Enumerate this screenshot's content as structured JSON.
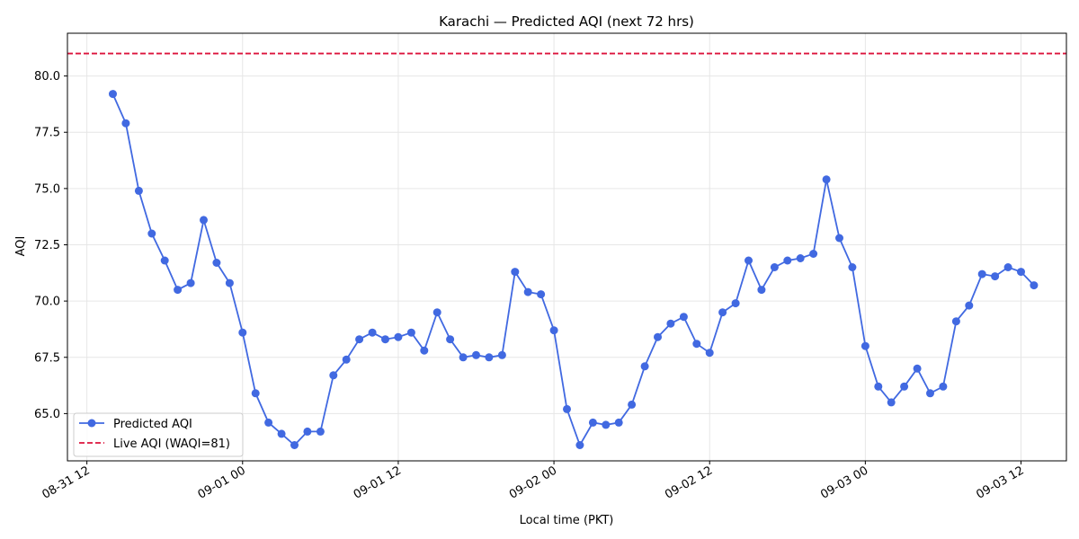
{
  "chart_data": {
    "type": "line",
    "title": "Karachi — Predicted AQI (next 72 hrs)",
    "xlabel": "Local time (PKT)",
    "ylabel": "AQI",
    "ylim": [
      62.9,
      81.9
    ],
    "yticks": [
      65.0,
      67.5,
      70.0,
      72.5,
      75.0,
      77.5,
      80.0
    ],
    "ytick_labels": [
      "65.0",
      "67.5",
      "70.0",
      "72.5",
      "75.0",
      "77.5",
      "80.0"
    ],
    "xlim_hours_from_08_31_00": [
      10.5,
      87.5
    ],
    "xticks": [
      {
        "label": "08-31 12",
        "hour": 12
      },
      {
        "label": "09-01 00",
        "hour": 24
      },
      {
        "label": "09-01 12",
        "hour": 36
      },
      {
        "label": "09-02 00",
        "hour": 48
      },
      {
        "label": "09-02 12",
        "hour": 60
      },
      {
        "label": "09-03 00",
        "hour": 72
      },
      {
        "label": "09-03 12",
        "hour": 84
      }
    ],
    "grid": true,
    "legend_position": "lower-left",
    "series": [
      {
        "name": "Predicted AQI",
        "style": "line-marker",
        "color": "#4169e1",
        "x_start_label": "08-31 14",
        "x_step_hours": 1,
        "values": [
          79.2,
          77.9,
          74.9,
          73.0,
          71.8,
          70.5,
          70.8,
          73.6,
          71.7,
          70.8,
          68.6,
          65.9,
          64.6,
          64.1,
          63.6,
          64.2,
          64.2,
          66.7,
          67.4,
          68.3,
          68.6,
          68.3,
          68.4,
          68.6,
          67.8,
          69.5,
          68.3,
          67.5,
          67.6,
          67.5,
          67.6,
          71.3,
          70.4,
          70.3,
          68.7,
          65.2,
          63.6,
          64.6,
          64.5,
          64.6,
          65.4,
          67.1,
          68.4,
          69.0,
          69.3,
          68.1,
          67.7,
          69.5,
          69.9,
          71.8,
          70.5,
          71.5,
          71.8,
          71.9,
          72.1,
          75.4,
          72.8,
          71.5,
          68.0,
          66.2,
          65.5,
          66.2,
          67.0,
          65.9,
          66.2,
          69.1,
          69.8,
          71.2,
          71.1,
          71.5,
          71.3,
          70.7
        ]
      },
      {
        "name": "Live AQI (WAQI=81)",
        "style": "hline-dashed",
        "color": "#dc143c",
        "value": 81
      }
    ]
  }
}
